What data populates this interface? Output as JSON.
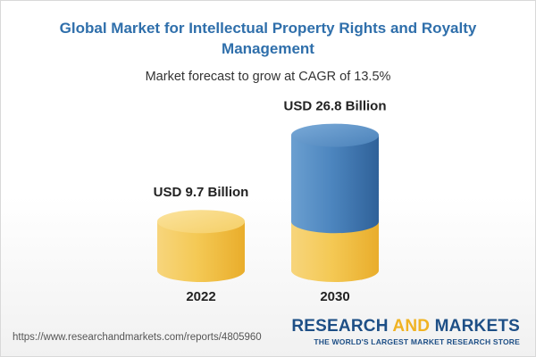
{
  "title": "Global Market for Intellectual Property Rights and Royalty Management",
  "subtitle": "Market forecast to grow at CAGR of 13.5%",
  "chart_data": {
    "type": "bar",
    "categories": [
      "2022",
      "2030"
    ],
    "values": [
      9.7,
      26.8
    ],
    "data_labels": [
      "USD 9.7 Billion",
      "USD 26.8 Billion"
    ],
    "unit": "USD Billion",
    "title": "Global Market for Intellectual Property Rights and Royalty Management",
    "subtitle": "Market forecast to grow at CAGR of 13.5%",
    "colors": {
      "base": "#f2c451",
      "growth": "#4d86bf"
    },
    "grid": false,
    "legend": "none"
  },
  "footer": {
    "url": "https://www.researchandmarkets.com/reports/4805960",
    "brand_word1": "RESEARCH",
    "brand_word2": "AND",
    "brand_word3": "MARKETS",
    "tagline": "THE WORLD'S LARGEST MARKET RESEARCH STORE"
  }
}
